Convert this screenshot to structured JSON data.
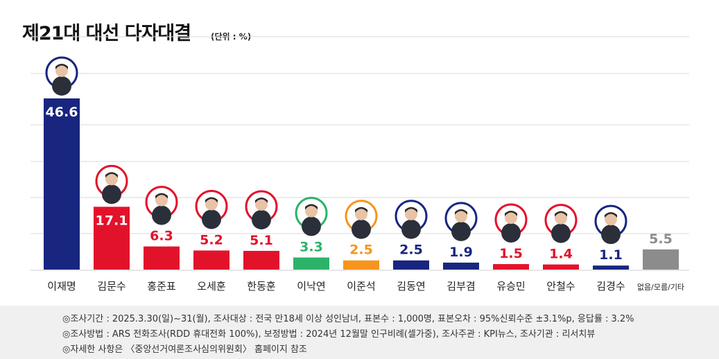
{
  "title": "제21대 대선 다자대결",
  "unit": "(단위 : %)",
  "colors": {
    "blue": "#182680",
    "red": "#e3122b",
    "green": "#2cb36b",
    "orange": "#f7941d",
    "gray": "#8c8c8c"
  },
  "chart_data": {
    "type": "bar",
    "title": "제21대 대선 다자대결",
    "categories": [
      "이재명",
      "김문수",
      "홍준표",
      "오세훈",
      "한동훈",
      "이낙연",
      "이준석",
      "김동연",
      "김부겸",
      "유승민",
      "안철수",
      "김경수",
      "없음/모름/기타"
    ],
    "values": [
      46.6,
      17.1,
      6.3,
      5.2,
      5.1,
      3.3,
      2.5,
      2.5,
      1.9,
      1.5,
      1.4,
      1.1,
      5.5
    ],
    "labels": [
      "46.6",
      "17.1",
      "6.3",
      "5.2",
      "5.1",
      "3.3",
      "2.5",
      "2.5",
      "1.9",
      "1.5",
      "1.4",
      "1.1",
      "5.5"
    ],
    "bar_colors": [
      "blue",
      "red",
      "red",
      "red",
      "red",
      "green",
      "orange",
      "blue",
      "blue",
      "red",
      "red",
      "blue",
      "gray"
    ],
    "has_portrait": [
      true,
      true,
      true,
      true,
      true,
      true,
      true,
      true,
      true,
      true,
      true,
      true,
      false
    ],
    "ylim": [
      0,
      50
    ],
    "grid": true,
    "xlabel": "",
    "ylabel": ""
  },
  "notes": [
    "◎조사기간 : 2025.3.30(일)~31(월), 조사대상 : 전국 만18세 이상 성인남녀, 표본수 : 1,000명, 표본오차 : 95%신뢰수준 ±3.1%p, 응답률 : 3.2%",
    "◎조사방법 : ARS 전화조사(RDD 휴대전화 100%), 보정방법 : 2024년 12월말 인구비례(셀가중), 조사주관 : KPI뉴스, 조사기관 : 리서치뷰",
    "◎자세한 사항은 〈중앙선거여론조사심의위원회〉 홈페이지 참조"
  ]
}
